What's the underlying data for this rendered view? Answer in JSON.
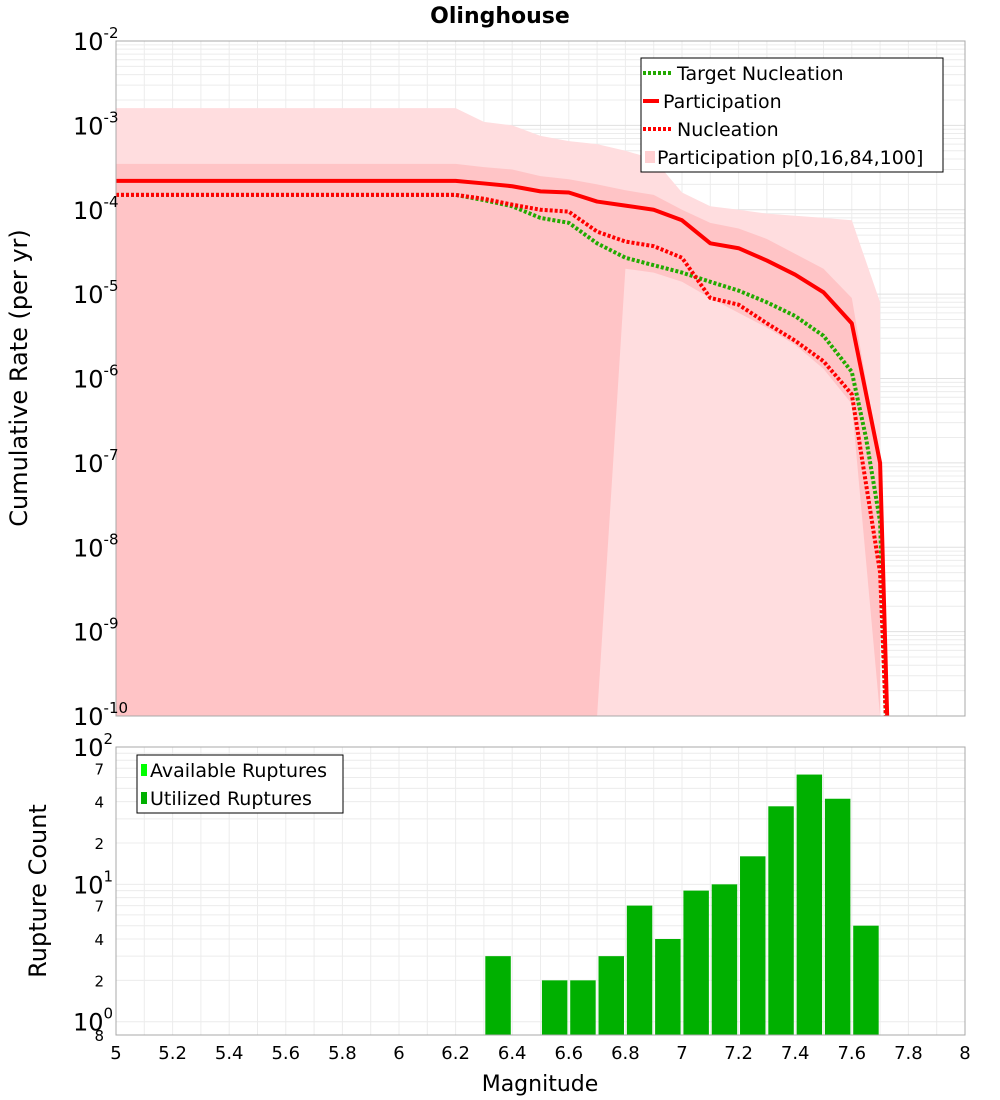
{
  "chart_data": [
    {
      "type": "line",
      "title": "Olinghouse",
      "ylabel": "Cumulative Rate (per yr)",
      "xlabel": "",
      "xlim": [
        5,
        8
      ],
      "ylim": [
        1e-10,
        0.01
      ],
      "yscale": "log",
      "y_tick_labels": [
        {
          "base": "10",
          "exp": "-10"
        },
        {
          "base": "10",
          "exp": "-9"
        },
        {
          "base": "10",
          "exp": "-8"
        },
        {
          "base": "10",
          "exp": "-7"
        },
        {
          "base": "10",
          "exp": "-6"
        },
        {
          "base": "10",
          "exp": "-5"
        },
        {
          "base": "10",
          "exp": "-4"
        },
        {
          "base": "10",
          "exp": "-3"
        },
        {
          "base": "10",
          "exp": "-2"
        }
      ],
      "grid": true,
      "legend_position": "top-right",
      "series": [
        {
          "name": "Target Nucleation",
          "style": "dotted",
          "color": "#22aa00",
          "x": [
            5.0,
            6.2,
            6.3,
            6.4,
            6.5,
            6.6,
            6.7,
            6.8,
            6.9,
            7.0,
            7.1,
            7.2,
            7.3,
            7.4,
            7.5,
            7.6,
            7.65,
            7.7,
            7.72
          ],
          "y": [
            0.00015,
            0.00015,
            0.00013,
            0.00011,
            8e-05,
            7e-05,
            4e-05,
            2.7e-05,
            2.2e-05,
            1.8e-05,
            1.4e-05,
            1.1e-05,
            8e-06,
            5.5e-06,
            3.2e-06,
            1.2e-06,
            2e-07,
            2e-08,
            1e-10
          ]
        },
        {
          "name": "Participation",
          "style": "solid",
          "color": "#ff0000",
          "x": [
            5.0,
            6.2,
            6.3,
            6.4,
            6.5,
            6.6,
            6.7,
            6.8,
            6.9,
            7.0,
            7.1,
            7.2,
            7.3,
            7.4,
            7.5,
            7.6,
            7.7,
            7.725
          ],
          "y": [
            0.00022,
            0.00022,
            0.000205,
            0.00019,
            0.000165,
            0.00016,
            0.000125,
            0.000112,
            0.0001,
            7.5e-05,
            4e-05,
            3.5e-05,
            2.5e-05,
            1.7e-05,
            1.05e-05,
            4.5e-06,
            1e-07,
            1e-10
          ]
        },
        {
          "name": "Nucleation",
          "style": "dotted",
          "color": "#ff0000",
          "x": [
            5.0,
            6.2,
            6.3,
            6.4,
            6.5,
            6.6,
            6.7,
            6.8,
            6.9,
            7.0,
            7.1,
            7.2,
            7.3,
            7.4,
            7.5,
            7.6,
            7.7,
            7.72
          ],
          "y": [
            0.00015,
            0.00015,
            0.000135,
            0.000115,
            0.0001,
            9.5e-05,
            5.5e-05,
            4.2e-05,
            3.7e-05,
            2.7e-05,
            9e-06,
            7.5e-06,
            4.5e-06,
            2.8e-06,
            1.6e-06,
            6.5e-07,
            5e-09,
            1e-10
          ]
        },
        {
          "name": "Participation p[0,16,84,100]",
          "style": "band",
          "color": "#ffb6b9",
          "x": [
            5.0,
            6.2,
            6.3,
            6.4,
            6.5,
            6.6,
            6.7,
            6.8,
            6.9,
            7.0,
            7.1,
            7.2,
            7.3,
            7.4,
            7.5,
            7.6,
            7.7
          ],
          "outer_upper": [
            0.0016,
            0.0016,
            0.0011,
            0.001,
            0.00075,
            0.00065,
            0.0006,
            0.0005,
            0.0004,
            0.00016,
            0.00011,
            0.0001,
            9e-05,
            8.5e-05,
            8e-05,
            7.5e-05,
            8e-06
          ],
          "inner_upper": [
            0.00035,
            0.00035,
            0.00032,
            0.0003,
            0.00025,
            0.00023,
            0.0002,
            0.00017,
            0.00015,
            0.0001,
            7e-05,
            6e-05,
            4.5e-05,
            3e-05,
            2e-05,
            9e-06,
            1e-07
          ],
          "inner_lower": [
            1e-10,
            1e-10,
            1e-10,
            1e-10,
            1e-10,
            1e-10,
            1e-10,
            2e-05,
            1.8e-05,
            1.4e-05,
            9e-06,
            6e-06,
            4e-06,
            2.5e-06,
            1.3e-06,
            5e-07,
            1e-10
          ]
        }
      ]
    },
    {
      "type": "bar",
      "xlabel": "Magnitude",
      "ylabel": "Rupture Count",
      "xlim": [
        5,
        8
      ],
      "ylim": [
        0.8,
        100
      ],
      "yscale": "log",
      "x_ticks": [
        "5",
        "5.2",
        "5.4",
        "5.6",
        "5.8",
        "6",
        "6.2",
        "6.4",
        "6.6",
        "6.8",
        "7",
        "7.2",
        "7.4",
        "7.6",
        "7.8",
        "8"
      ],
      "y_tick_labels": [
        {
          "base": "10",
          "exp": "0"
        },
        {
          "base": "10",
          "exp": "1"
        },
        {
          "base": "10",
          "exp": "2"
        }
      ],
      "y_minor_labels": [
        "8",
        "2",
        "4",
        "7",
        "2",
        "4",
        "7"
      ],
      "grid": true,
      "legend_position": "top-left",
      "legend": [
        {
          "name": "Available Ruptures",
          "color": "#00ff00"
        },
        {
          "name": "Utilized Ruptures",
          "color": "#00b000"
        }
      ],
      "bar_width": 0.09,
      "categories": [
        6.35,
        6.55,
        6.65,
        6.75,
        6.85,
        6.95,
        7.05,
        7.15,
        7.25,
        7.35,
        7.45,
        7.55,
        7.65
      ],
      "series": [
        {
          "name": "Utilized Ruptures",
          "values": [
            3,
            2,
            2,
            3,
            7,
            4,
            9,
            10,
            16,
            37,
            63,
            42,
            5
          ]
        }
      ]
    }
  ],
  "colors": {
    "band_outer": "#ffdddf",
    "band_inner": "#ffc0c2",
    "grid": "#e0e0e0",
    "bar": "#00b000"
  }
}
